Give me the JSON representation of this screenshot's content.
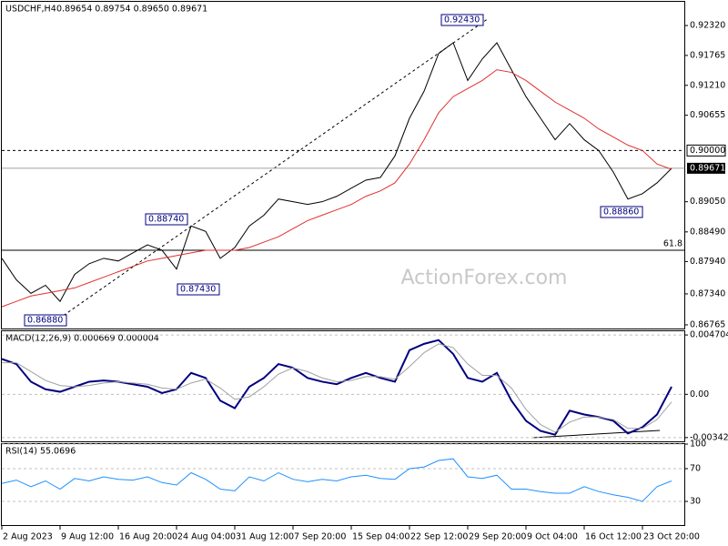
{
  "chart_data": [
    {
      "type": "line",
      "title": "USDCHF,H4",
      "subtitle": "0.89654 0.89754 0.89650 0.89671",
      "categories": [
        "2 Aug 2023",
        null,
        null,
        null,
        "9 Aug 12:00",
        null,
        null,
        null,
        "16 Aug 20:00",
        null,
        null,
        null,
        "24 Aug 04:00",
        null,
        null,
        null,
        "31 Aug 12:00",
        null,
        null,
        null,
        "7 Sep 20:00",
        null,
        null,
        null,
        "15 Sep 04:00",
        null,
        null,
        null,
        "22 Sep 12:00",
        null,
        null,
        null,
        "29 Sep 20:00",
        null,
        null,
        null,
        "9 Oct 04:00",
        null,
        null,
        null,
        "16 Oct 12:00",
        null,
        null,
        null,
        "23 Oct 20:00",
        null,
        null
      ],
      "ylim": [
        0.8668,
        0.9276
      ],
      "yticks": [
        {
          "value": 0.9232,
          "label": "0.92320"
        },
        0.91765,
        {
          "value": 0.9121,
          "label": "0.91210"
        },
        0.90655,
        {
          "value": 0.8905,
          "label": "0.89050"
        },
        {
          "value": 0.8849,
          "label": "0.88490"
        },
        {
          "value": 0.8794,
          "label": "0.87940"
        },
        {
          "value": 0.8734,
          "label": "0.87340"
        },
        0.86765
      ],
      "series": [
        {
          "name": "USDCHF",
          "color": "#000000",
          "values": [
            0.88,
            0.876,
            0.8735,
            0.875,
            0.872,
            0.877,
            0.879,
            0.88,
            0.8795,
            0.881,
            0.8825,
            0.8815,
            0.878,
            0.886,
            0.885,
            0.88,
            0.882,
            0.886,
            0.888,
            0.891,
            0.8905,
            0.89,
            0.8905,
            0.8915,
            0.893,
            0.8945,
            0.895,
            0.899,
            0.906,
            0.911,
            0.918,
            0.92,
            0.913,
            0.917,
            0.92,
            0.915,
            0.91,
            0.906,
            0.902,
            0.905,
            0.902,
            0.9,
            0.896,
            0.891,
            0.892,
            0.894,
            0.8967
          ]
        },
        {
          "color": "#e0302f",
          "values": [
            0.871,
            0.872,
            0.873,
            0.8735,
            0.874,
            0.8745,
            0.8755,
            0.8765,
            0.8775,
            0.8785,
            0.8795,
            0.88,
            0.8805,
            0.881,
            0.8815,
            0.8815,
            0.8815,
            0.882,
            0.883,
            0.884,
            0.8855,
            0.887,
            0.888,
            0.889,
            0.89,
            0.8915,
            0.8925,
            0.894,
            0.8975,
            0.902,
            0.907,
            0.91,
            0.9115,
            0.913,
            0.915,
            0.9145,
            0.913,
            0.911,
            0.909,
            0.9075,
            0.906,
            0.904,
            0.9025,
            0.901,
            0.9,
            0.8975,
            0.8965
          ]
        }
      ],
      "levels": [
        {
          "label": "0.90000",
          "value": 0.9,
          "style": "dashed"
        },
        {
          "label": "0.89671",
          "value": 0.89671,
          "style": "current"
        },
        {
          "label": "61.8",
          "value": 0.8815,
          "style": "fib"
        }
      ],
      "annotations": [
        "0.92430",
        "0.88740",
        "0.87430",
        "0.86880",
        "0.88860"
      ],
      "watermark": "ActionForex.com"
    },
    {
      "type": "line",
      "title": "MACD(12,26,9) 0.000669 0.000004",
      "ylim": [
        -0.0038,
        0.005
      ],
      "yticks": [
        0.004704,
        {
          "value": 0,
          "label": "0.00"
        },
        -0.003429
      ],
      "series": [
        {
          "color": "#00007f",
          "values": [
            0.0028,
            0.0024,
            0.001,
            0.0004,
            0.0002,
            0.0006,
            0.001,
            0.0011,
            0.001,
            0.0008,
            0.0006,
            0.0001,
            0.0004,
            0.0017,
            0.0013,
            -0.0005,
            -0.0011,
            0.0006,
            0.0013,
            0.0024,
            0.0021,
            0.0013,
            0.001,
            0.0008,
            0.0013,
            0.0017,
            0.0013,
            0.001,
            0.0035,
            0.004,
            0.0043,
            0.0032,
            0.0013,
            0.001,
            0.0017,
            -0.0005,
            -0.0021,
            -0.0029,
            -0.0032,
            -0.0013,
            -0.0016,
            -0.0018,
            -0.0021,
            -0.0031,
            -0.0026,
            -0.0016,
            0.0006
          ]
        },
        {
          "color": "#a0a0a0",
          "values": [
            0.0025,
            0.0025,
            0.0018,
            0.0011,
            0.0007,
            0.0006,
            0.0007,
            0.0009,
            0.001,
            0.0009,
            0.0008,
            0.0005,
            0.0004,
            0.0009,
            0.0012,
            0.0005,
            -0.0004,
            -0.0002,
            0.0006,
            0.0016,
            0.0021,
            0.0018,
            0.0013,
            0.001,
            0.0011,
            0.0014,
            0.0014,
            0.0012,
            0.0022,
            0.0033,
            0.004,
            0.0037,
            0.0024,
            0.0015,
            0.0015,
            0.0005,
            -0.0012,
            -0.0024,
            -0.003,
            -0.0022,
            -0.0018,
            -0.0018,
            -0.002,
            -0.0027,
            -0.0027,
            -0.002,
            -0.0006
          ]
        }
      ]
    },
    {
      "type": "line",
      "title": "RSI(14) 55.0696",
      "ylim": [
        0,
        100
      ],
      "yticks": [
        100,
        70,
        30
      ],
      "series": [
        {
          "color": "#1e90ff",
          "values": [
            52,
            56,
            48,
            55,
            45,
            58,
            55,
            60,
            57,
            56,
            60,
            53,
            50,
            65,
            57,
            45,
            43,
            60,
            55,
            65,
            57,
            54,
            57,
            55,
            60,
            62,
            58,
            57,
            70,
            72,
            80,
            82,
            60,
            58,
            62,
            45,
            45,
            42,
            40,
            40,
            48,
            42,
            38,
            35,
            30,
            48,
            55
          ]
        }
      ]
    }
  ]
}
